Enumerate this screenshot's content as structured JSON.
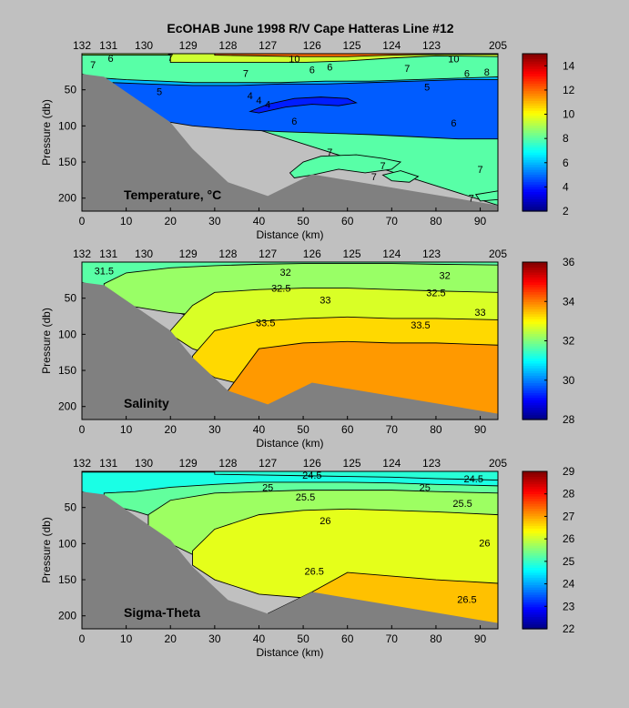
{
  "title": "EcOHAB   June 1998   R/V Cape Hatteras   Line #12",
  "colors": {
    "background": "#c0c0c0",
    "bathymetry": "#808080",
    "contour_line": "#000000"
  },
  "shared_axes": {
    "xlabel": "Distance (km)",
    "ylabel": "Pressure (db)",
    "xlim": [
      0,
      94
    ],
    "ylim": [
      218,
      0
    ],
    "xticks": [
      0,
      10,
      20,
      30,
      40,
      50,
      60,
      70,
      80,
      90
    ],
    "yticks": [
      50,
      100,
      150,
      200
    ],
    "station_labels": [
      {
        "label": "132",
        "x": 0
      },
      {
        "label": "131",
        "x": 6
      },
      {
        "label": "130",
        "x": 14
      },
      {
        "label": "129",
        "x": 24
      },
      {
        "label": "128",
        "x": 33
      },
      {
        "label": "127",
        "x": 42
      },
      {
        "label": "126",
        "x": 52
      },
      {
        "label": "125",
        "x": 61
      },
      {
        "label": "124",
        "x": 70
      },
      {
        "label": "123",
        "x": 79
      },
      {
        "label": "205",
        "x": 94
      }
    ],
    "bathymetry": {
      "x": [
        0,
        5,
        20,
        25,
        33,
        42,
        52,
        94
      ],
      "depth": [
        28,
        32,
        95,
        132,
        178,
        197,
        167,
        210
      ]
    }
  },
  "chart_data": [
    {
      "type": "heatmap",
      "name": "temperature",
      "panel_label": "Temperature, °C",
      "colorbar": {
        "min": 2,
        "max": 15,
        "ticks": [
          2,
          4,
          6,
          8,
          10,
          12,
          14
        ]
      },
      "layers": [
        {
          "value": 8.0,
          "x": [
            0,
            94
          ],
          "top": [
            0,
            0
          ],
          "bottom": [
            28,
            210
          ]
        },
        {
          "value": 6.0,
          "x": [
            0,
            5,
            10,
            18,
            25,
            35,
            45,
            55,
            65,
            75,
            85,
            94
          ],
          "top": [
            32,
            34,
            36,
            38,
            40,
            40,
            40,
            38,
            38,
            36,
            34,
            32
          ],
          "bottom": [
            40,
            42,
            46,
            50,
            50,
            50,
            48,
            46,
            45,
            44,
            42,
            42
          ]
        },
        {
          "value": 4.8,
          "x": [
            7,
            15,
            25,
            35,
            45,
            55,
            65,
            75,
            85,
            94
          ],
          "top": [
            40,
            42,
            44,
            44,
            42,
            42,
            40,
            38,
            36,
            36
          ],
          "bottom": [
            80,
            90,
            100,
            105,
            108,
            110,
            112,
            115,
            118,
            118
          ]
        },
        {
          "value": 4.0,
          "x": [
            38,
            42,
            48,
            54,
            60,
            62,
            58,
            52,
            46,
            40
          ],
          "closed": true,
          "y": [
            80,
            70,
            62,
            60,
            62,
            68,
            72,
            70,
            74,
            82
          ]
        },
        {
          "value": 8.0,
          "x": [
            47,
            50,
            54,
            62,
            68,
            72,
            70,
            64,
            58,
            52,
            48
          ],
          "closed": true,
          "y": [
            165,
            150,
            142,
            140,
            145,
            150,
            160,
            165,
            160,
            168,
            172
          ]
        },
        {
          "value": 8.0,
          "x": [
            68,
            72,
            76,
            74,
            70
          ],
          "closed": true,
          "y": [
            168,
            162,
            170,
            178,
            176
          ]
        },
        {
          "value": 8.0,
          "x": [
            89,
            94,
            94,
            90
          ],
          "closed": true,
          "y": [
            195,
            190,
            202,
            204
          ]
        },
        {
          "value": 9.0,
          "x": [
            0,
            94
          ],
          "top": [
            0,
            0
          ],
          "bottom": [
            2,
            2
          ]
        },
        {
          "value": 9.5,
          "x": [
            20,
            30,
            40,
            50,
            60,
            70,
            80,
            94
          ],
          "top": [
            0,
            0,
            0,
            0,
            0,
            0,
            0,
            0
          ],
          "bottom": [
            12,
            12,
            12,
            12,
            10,
            6,
            3,
            4
          ]
        },
        {
          "value": 12.0,
          "x": [
            30,
            40,
            50,
            60,
            70,
            80,
            94
          ],
          "top": [
            0,
            0,
            0,
            0,
            0,
            0,
            0
          ],
          "bottom": [
            2,
            3,
            4,
            4,
            2,
            1,
            1
          ]
        }
      ],
      "contour_labels": [
        {
          "text": "7",
          "x": 2.5,
          "y": 15
        },
        {
          "text": "6",
          "x": 6.5,
          "y": 6
        },
        {
          "text": "7",
          "x": 20,
          "y": 5
        },
        {
          "text": "7",
          "x": 37,
          "y": 27
        },
        {
          "text": "6",
          "x": 52,
          "y": 22
        },
        {
          "text": "6",
          "x": 56,
          "y": 18
        },
        {
          "text": "10",
          "x": 48,
          "y": 7
        },
        {
          "text": "7",
          "x": 73.5,
          "y": 20
        },
        {
          "text": "10",
          "x": 84,
          "y": 7
        },
        {
          "text": "6",
          "x": 87,
          "y": 27
        },
        {
          "text": "8",
          "x": 91.5,
          "y": 25
        },
        {
          "text": "5",
          "x": 17.5,
          "y": 52
        },
        {
          "text": "5",
          "x": 78,
          "y": 46
        },
        {
          "text": "6",
          "x": 48,
          "y": 93
        },
        {
          "text": "6",
          "x": 84,
          "y": 96
        },
        {
          "text": "4",
          "x": 38,
          "y": 58
        },
        {
          "text": "4",
          "x": 40,
          "y": 64
        },
        {
          "text": "4",
          "x": 42,
          "y": 70
        },
        {
          "text": "7",
          "x": 56,
          "y": 136
        },
        {
          "text": "7",
          "x": 68,
          "y": 155
        },
        {
          "text": "7",
          "x": 90,
          "y": 160
        },
        {
          "text": "7",
          "x": 66,
          "y": 170
        },
        {
          "text": "7",
          "x": 88,
          "y": 200
        }
      ]
    },
    {
      "type": "heatmap",
      "name": "salinity",
      "panel_label": "Salinity",
      "colorbar": {
        "min": 28,
        "max": 36,
        "ticks": [
          28,
          30,
          32,
          34,
          36
        ]
      },
      "layers": [
        {
          "value": 31.7,
          "x": [
            0,
            94
          ],
          "top": [
            0,
            0
          ],
          "bottom": [
            28,
            210
          ]
        },
        {
          "value": 32.2,
          "x": [
            5,
            10,
            20,
            30,
            40,
            50,
            60,
            70,
            80,
            94
          ],
          "top": [
            30,
            15,
            8,
            5,
            3,
            2,
            2,
            2,
            3,
            4
          ],
          "bottom": [
            40,
            60,
            70,
            75,
            80,
            90,
            100,
            110,
            115,
            120
          ]
        },
        {
          "value": 32.7,
          "x": [
            20,
            25,
            30,
            40,
            50,
            60,
            70,
            80,
            94
          ],
          "top": [
            95,
            60,
            42,
            38,
            36,
            36,
            38,
            40,
            42
          ],
          "bottom": [
            100,
            120,
            130,
            140,
            150,
            155,
            160,
            165,
            170
          ]
        },
        {
          "value": 33.3,
          "x": [
            25,
            30,
            40,
            50,
            60,
            70,
            80,
            94
          ],
          "top": [
            130,
            95,
            82,
            78,
            76,
            78,
            78,
            80
          ],
          "bottom": [
            140,
            160,
            175,
            170,
            175,
            180,
            185,
            200
          ]
        },
        {
          "value": 33.8,
          "x": [
            33,
            40,
            50,
            60,
            70,
            80,
            94
          ],
          "top": [
            178,
            120,
            112,
            110,
            112,
            112,
            115
          ],
          "bottom": [
            190,
            200,
            205,
            210,
            212,
            214,
            215
          ]
        }
      ],
      "contour_labels": [
        {
          "text": "31.5",
          "x": 5,
          "y": 12
        },
        {
          "text": "32",
          "x": 46,
          "y": 14
        },
        {
          "text": "32.5",
          "x": 45,
          "y": 36
        },
        {
          "text": "33",
          "x": 55,
          "y": 52
        },
        {
          "text": "33.5",
          "x": 41.5,
          "y": 84
        },
        {
          "text": "32",
          "x": 82,
          "y": 18
        },
        {
          "text": "32.5",
          "x": 80,
          "y": 42
        },
        {
          "text": "33",
          "x": 90,
          "y": 69
        },
        {
          "text": "33.5",
          "x": 76.5,
          "y": 87
        }
      ]
    },
    {
      "type": "heatmap",
      "name": "sigma_theta",
      "panel_label": "Sigma-Theta",
      "colorbar": {
        "min": 22,
        "max": 29,
        "ticks": [
          22,
          23,
          24,
          25,
          26,
          27,
          28,
          29
        ]
      },
      "layers": [
        {
          "value": 24.8,
          "x": [
            0,
            94
          ],
          "top": [
            0,
            0
          ],
          "bottom": [
            28,
            210
          ]
        },
        {
          "value": 25.3,
          "x": [
            5,
            12,
            20,
            30,
            40,
            50,
            60,
            70,
            80,
            94
          ],
          "top": [
            30,
            28,
            22,
            18,
            15,
            15,
            15,
            16,
            18,
            20
          ],
          "bottom": [
            45,
            55,
            70,
            80,
            85,
            90,
            100,
            110,
            120,
            130
          ]
        },
        {
          "value": 25.7,
          "x": [
            15,
            20,
            30,
            40,
            50,
            60,
            70,
            80,
            94
          ],
          "top": [
            60,
            40,
            30,
            28,
            26,
            26,
            26,
            28,
            30
          ],
          "bottom": [
            80,
            100,
            130,
            140,
            150,
            160,
            170,
            180,
            190
          ]
        },
        {
          "value": 26.2,
          "x": [
            25,
            30,
            40,
            50,
            60,
            70,
            80,
            94
          ],
          "top": [
            110,
            80,
            60,
            54,
            52,
            54,
            56,
            60
          ],
          "bottom": [
            130,
            150,
            170,
            175,
            180,
            185,
            190,
            195
          ]
        },
        {
          "value": 26.8,
          "x": [
            42,
            52,
            60,
            70,
            80,
            94
          ],
          "top": [
            197,
            167,
            140,
            145,
            150,
            155
          ],
          "bottom": [
            197,
            167,
            200,
            205,
            210,
            212
          ]
        },
        {
          "value": 25.0,
          "x": [
            0,
            94
          ],
          "top": [
            0,
            0
          ],
          "bottom": [
            1,
            1
          ]
        },
        {
          "value": 24.9,
          "x": [
            30,
            40,
            50,
            60,
            70,
            80,
            94
          ],
          "top": [
            0,
            0,
            0,
            0,
            0,
            0,
            0
          ],
          "bottom": [
            4,
            5,
            6,
            7,
            8,
            10,
            12
          ]
        }
      ],
      "contour_labels": [
        {
          "text": "24.5",
          "x": 52,
          "y": 5
        },
        {
          "text": "25",
          "x": 42,
          "y": 22
        },
        {
          "text": "25.5",
          "x": 50.5,
          "y": 35
        },
        {
          "text": "26",
          "x": 55,
          "y": 68
        },
        {
          "text": "26.5",
          "x": 52.5,
          "y": 138
        },
        {
          "text": "24.5",
          "x": 88.5,
          "y": 10
        },
        {
          "text": "25",
          "x": 77.5,
          "y": 22
        },
        {
          "text": "25.5",
          "x": 86,
          "y": 44
        },
        {
          "text": "26",
          "x": 91,
          "y": 99
        },
        {
          "text": "26.5",
          "x": 87,
          "y": 177
        }
      ]
    }
  ]
}
